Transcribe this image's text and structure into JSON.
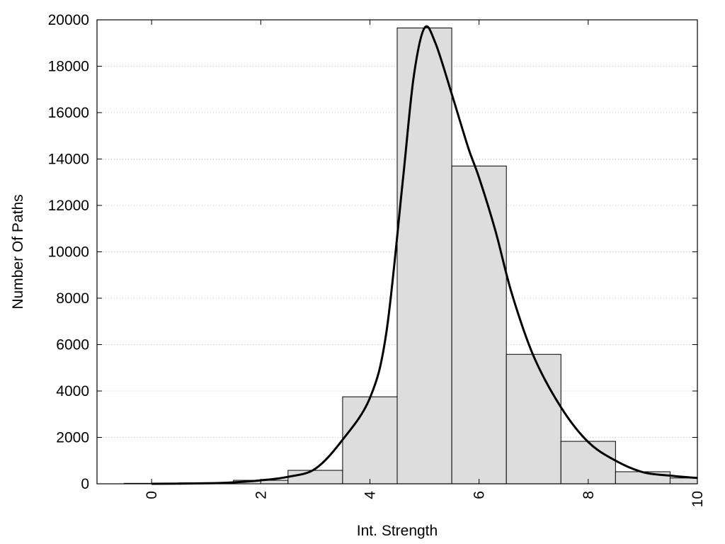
{
  "chart_data": {
    "type": "bar",
    "title": "",
    "xlabel": "Int. Strength",
    "ylabel": "Number Of Paths",
    "xlim": [
      -1,
      10
    ],
    "ylim": [
      0,
      20000
    ],
    "x_ticks": [
      0,
      2,
      4,
      6,
      8,
      10
    ],
    "y_ticks": [
      0,
      2000,
      4000,
      6000,
      8000,
      10000,
      12000,
      14000,
      16000,
      18000,
      20000
    ],
    "grid": "horizontal dotted",
    "legend": "none",
    "histogram": {
      "bin_width": 1,
      "bin_centers": [
        0,
        1,
        2,
        3,
        4,
        5,
        6,
        7,
        8,
        9,
        10
      ],
      "values": [
        20,
        40,
        150,
        580,
        3750,
        19650,
        13700,
        5580,
        1830,
        520,
        250
      ]
    },
    "fit_curve": {
      "x": [
        0,
        1,
        1.5,
        2,
        2.5,
        3,
        3.5,
        4,
        4.3,
        4.6,
        4.8,
        5.0,
        5.2,
        5.5,
        5.8,
        6.0,
        6.3,
        6.6,
        7.0,
        7.5,
        8.0,
        8.5,
        9.0,
        9.5,
        10.0
      ],
      "y": [
        0,
        20,
        60,
        150,
        300,
        650,
        1900,
        3700,
        6500,
        13000,
        17500,
        19650,
        19000,
        16800,
        14500,
        13200,
        10900,
        8200,
        5500,
        3300,
        1800,
        1000,
        500,
        350,
        250
      ]
    },
    "colors": {
      "bar_fill": "#dddddd",
      "bar_stroke": "#000000",
      "curve": "#000000",
      "grid": "#c0c0c0"
    }
  }
}
